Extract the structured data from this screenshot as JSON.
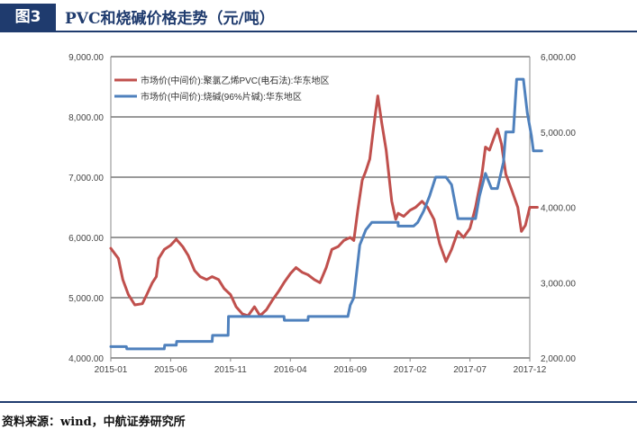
{
  "header": {
    "badge": "图3",
    "title": "PVC和烧碱价格走势（元/吨）"
  },
  "footer": {
    "source": "资料来源：wind，中航证券研究所"
  },
  "colors": {
    "pvc": "#c0504d",
    "caustic": "#4f81bd",
    "brand": "#1f3b6e"
  },
  "chart_data": {
    "type": "line",
    "x_ticks": [
      "2015-01",
      "2015-06",
      "2015-11",
      "2016-04",
      "2016-09",
      "2017-02",
      "2017-07",
      "2017-12"
    ],
    "x_range": [
      "2015-01",
      "2017-12"
    ],
    "y_left": {
      "range": [
        4000,
        9000
      ],
      "ticks": [
        "4,000.00",
        "5,000.00",
        "6,000.00",
        "7,000.00",
        "8,000.00",
        "9,000.00"
      ]
    },
    "y_right": {
      "range": [
        2000,
        6000
      ],
      "ticks": [
        "2,000.00",
        "3,000.00",
        "4,000.00",
        "5,000.00",
        "6,000.00"
      ]
    },
    "legend_position": "top-left",
    "grid": true,
    "series": [
      {
        "name": "市场价(中间价):聚氯乙烯PVC(电石法):华东地区",
        "axis": "left",
        "points": [
          [
            "2015-01",
            5820
          ],
          [
            "2015-01-20",
            5650
          ],
          [
            "2015-02",
            5300
          ],
          [
            "2015-02-15",
            5050
          ],
          [
            "2015-03",
            4880
          ],
          [
            "2015-03-20",
            4900
          ],
          [
            "2015-04",
            5050
          ],
          [
            "2015-04-15",
            5250
          ],
          [
            "2015-04-25",
            5350
          ],
          [
            "2015-05",
            5650
          ],
          [
            "2015-05-15",
            5800
          ],
          [
            "2015-06",
            5870
          ],
          [
            "2015-06-15",
            5970
          ],
          [
            "2015-07",
            5850
          ],
          [
            "2015-07-15",
            5700
          ],
          [
            "2015-08",
            5450
          ],
          [
            "2015-08-15",
            5350
          ],
          [
            "2015-09",
            5300
          ],
          [
            "2015-09-15",
            5350
          ],
          [
            "2015-10",
            5300
          ],
          [
            "2015-10-15",
            5150
          ],
          [
            "2015-11",
            5050
          ],
          [
            "2015-11-15",
            4850
          ],
          [
            "2015-12",
            4730
          ],
          [
            "2015-12-15",
            4700
          ],
          [
            "2016-01",
            4850
          ],
          [
            "2016-01-15",
            4700
          ],
          [
            "2016-02",
            4800
          ],
          [
            "2016-02-15",
            4950
          ],
          [
            "2016-03",
            5100
          ],
          [
            "2016-03-15",
            5250
          ],
          [
            "2016-04",
            5400
          ],
          [
            "2016-04-15",
            5500
          ],
          [
            "2016-05",
            5420
          ],
          [
            "2016-05-15",
            5380
          ],
          [
            "2016-06",
            5300
          ],
          [
            "2016-06-15",
            5250
          ],
          [
            "2016-07",
            5500
          ],
          [
            "2016-07-15",
            5800
          ],
          [
            "2016-08",
            5850
          ],
          [
            "2016-08-15",
            5950
          ],
          [
            "2016-09",
            6000
          ],
          [
            "2016-09-10",
            5950
          ],
          [
            "2016-09-20",
            6450
          ],
          [
            "2016-10",
            6950
          ],
          [
            "2016-10-10",
            7100
          ],
          [
            "2016-10-20",
            7300
          ],
          [
            "2016-11",
            7900
          ],
          [
            "2016-11-10",
            8350
          ],
          [
            "2016-11-20",
            7900
          ],
          [
            "2016-12",
            7450
          ],
          [
            "2016-12-15",
            6600
          ],
          [
            "2016-12-25",
            6300
          ],
          [
            "2017-01",
            6400
          ],
          [
            "2017-01-15",
            6350
          ],
          [
            "2017-02",
            6450
          ],
          [
            "2017-02-15",
            6500
          ],
          [
            "2017-03",
            6600
          ],
          [
            "2017-03-15",
            6500
          ],
          [
            "2017-04",
            6300
          ],
          [
            "2017-04-15",
            5900
          ],
          [
            "2017-05",
            5600
          ],
          [
            "2017-05-15",
            5800
          ],
          [
            "2017-06",
            6100
          ],
          [
            "2017-06-15",
            6000
          ],
          [
            "2017-07",
            6150
          ],
          [
            "2017-07-15",
            6500
          ],
          [
            "2017-08",
            7050
          ],
          [
            "2017-08-10",
            7500
          ],
          [
            "2017-08-20",
            7450
          ],
          [
            "2017-09",
            7650
          ],
          [
            "2017-09-10",
            7800
          ],
          [
            "2017-09-20",
            7550
          ],
          [
            "2017-10",
            7050
          ],
          [
            "2017-10-15",
            6800
          ],
          [
            "2017-11",
            6500
          ],
          [
            "2017-11-10",
            6100
          ],
          [
            "2017-11-20",
            6200
          ],
          [
            "2017-12",
            6500
          ],
          [
            "2017-12-20",
            6500
          ]
        ]
      },
      {
        "name": "市场价(中间价):烧碱(96%片碱):华东地区",
        "axis": "right",
        "points": [
          [
            "2015-01",
            2150
          ],
          [
            "2015-02-10",
            2150
          ],
          [
            "2015-02-11",
            2120
          ],
          [
            "2015-05-15",
            2120
          ],
          [
            "2015-05-16",
            2170
          ],
          [
            "2015-06-15",
            2170
          ],
          [
            "2015-06-16",
            2220
          ],
          [
            "2015-09-15",
            2220
          ],
          [
            "2015-09-16",
            2300
          ],
          [
            "2015-10-25",
            2300
          ],
          [
            "2015-10-26",
            2550
          ],
          [
            "2016-03-15",
            2550
          ],
          [
            "2016-03-16",
            2500
          ],
          [
            "2016-05-15",
            2500
          ],
          [
            "2016-05-16",
            2550
          ],
          [
            "2016-08-25",
            2550
          ],
          [
            "2016-09",
            2700
          ],
          [
            "2016-09-10",
            2800
          ],
          [
            "2016-09-25",
            3500
          ],
          [
            "2016-10-10",
            3700
          ],
          [
            "2016-10-25",
            3800
          ],
          [
            "2016-12-31",
            3800
          ],
          [
            "2017-01",
            3750
          ],
          [
            "2017-02-10",
            3750
          ],
          [
            "2017-02-20",
            3800
          ],
          [
            "2017-03-05",
            3950
          ],
          [
            "2017-03-20",
            4150
          ],
          [
            "2017-04-05",
            4400
          ],
          [
            "2017-05",
            4400
          ],
          [
            "2017-05-15",
            4300
          ],
          [
            "2017-06",
            3850
          ],
          [
            "2017-07-15",
            3850
          ],
          [
            "2017-07-25",
            4150
          ],
          [
            "2017-08-10",
            4450
          ],
          [
            "2017-08-25",
            4250
          ],
          [
            "2017-09-10",
            4250
          ],
          [
            "2017-09-25",
            4600
          ],
          [
            "2017-10",
            5000
          ],
          [
            "2017-10-20",
            5000
          ],
          [
            "2017-10-28",
            5700
          ],
          [
            "2017-11-15",
            5700
          ],
          [
            "2017-11-25",
            5250
          ],
          [
            "2017-12-05",
            4950
          ],
          [
            "2017-12-10",
            4750
          ],
          [
            "2017-12-31",
            4750
          ]
        ]
      }
    ]
  }
}
